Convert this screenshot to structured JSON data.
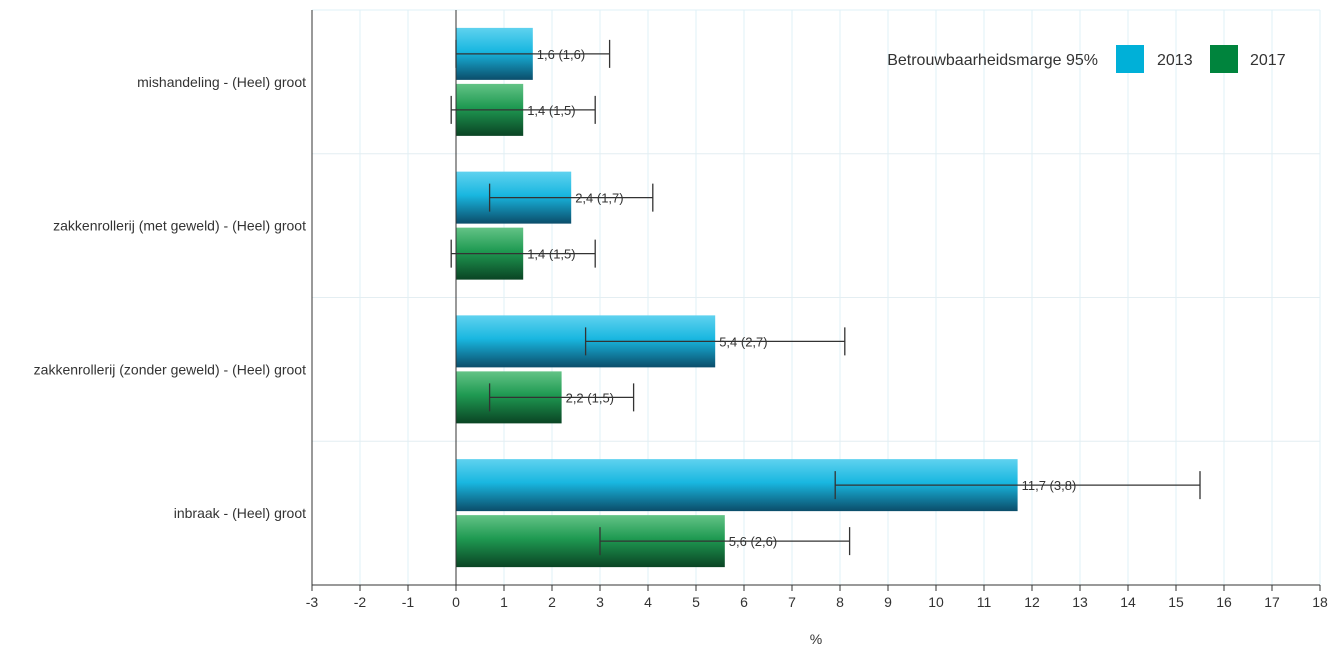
{
  "chart_data": {
    "type": "bar",
    "orientation": "horizontal",
    "categories": [
      "mishandeling - (Heel) groot",
      "zakkenrollerij (met geweld) - (Heel) groot",
      "zakkenrollerij (zonder geweld) - (Heel) groot",
      "inbraak - (Heel) groot"
    ],
    "series": [
      {
        "name": "2013",
        "color": "#00b0d8",
        "values": [
          1.6,
          2.4,
          5.4,
          11.7
        ],
        "margins": [
          1.6,
          1.7,
          2.7,
          3.8
        ],
        "labels": [
          "1,6 (1,6)",
          "2,4 (1,7)",
          "5,4 (2,7)",
          "11,7 (3,8)"
        ]
      },
      {
        "name": "2017",
        "color": "#00843d",
        "values": [
          1.4,
          1.4,
          2.2,
          5.6
        ],
        "margins": [
          1.5,
          1.5,
          1.5,
          2.6
        ],
        "labels": [
          "1,4 (1,5)",
          "1,4 (1,5)",
          "2,2 (1,5)",
          "5,6 (2,6)"
        ]
      }
    ],
    "xlabel": "%",
    "xlim": [
      -3,
      18
    ],
    "xticks": [
      "-3",
      "-2",
      "-1",
      "0",
      "1",
      "2",
      "3",
      "4",
      "5",
      "6",
      "7",
      "8",
      "9",
      "10",
      "11",
      "12",
      "13",
      "14",
      "15",
      "16",
      "17",
      "18"
    ],
    "grid": true,
    "legend": {
      "title": "Betrouwbaarheidsmarge 95%",
      "position": "top-right"
    }
  }
}
